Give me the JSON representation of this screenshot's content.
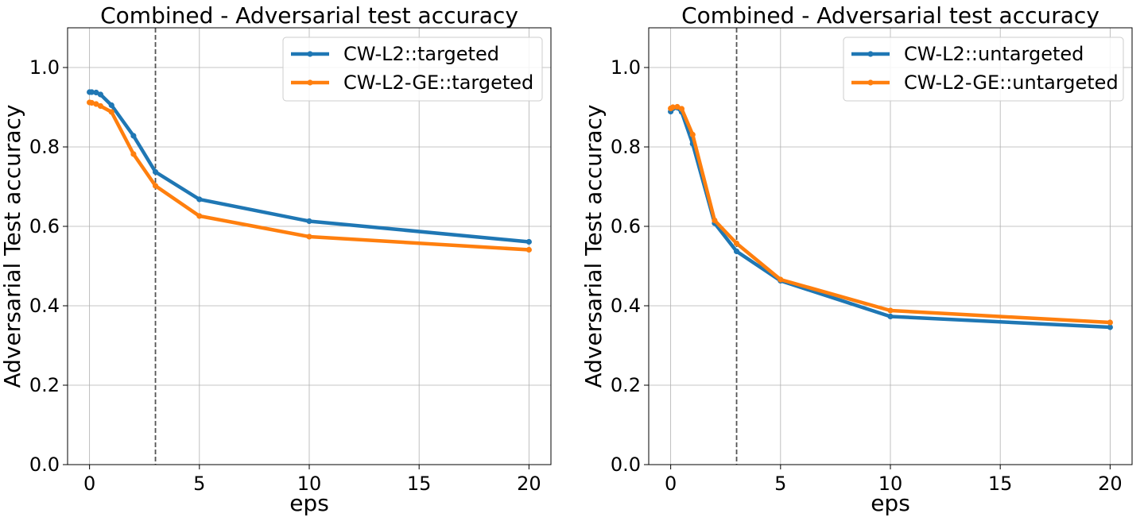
{
  "chart_data": [
    {
      "type": "line",
      "title": "Combined - Adversarial test accuracy",
      "xlabel": "eps",
      "ylabel": "Adversarial Test accuracy",
      "xlim": [
        -1,
        21
      ],
      "ylim": [
        0,
        1.1
      ],
      "xticks": [
        0,
        5,
        10,
        15,
        20
      ],
      "xtick_labels": [
        "0",
        "5",
        "10",
        "15",
        "20"
      ],
      "yticks": [
        0.0,
        0.2,
        0.4,
        0.6,
        0.8,
        1.0
      ],
      "ytick_labels": [
        "0.0",
        "0.2",
        "0.4",
        "0.6",
        "0.8",
        "1.0"
      ],
      "grid": true,
      "legend_position": "top-right",
      "vline_x": 3,
      "series": [
        {
          "name": "CW-L2::targeted",
          "color": "#1f77b4",
          "x": [
            0,
            0.1,
            0.3,
            0.5,
            1,
            2,
            3,
            5,
            10,
            20
          ],
          "y": [
            0.938,
            0.938,
            0.937,
            0.932,
            0.905,
            0.828,
            0.737,
            0.668,
            0.613,
            0.561
          ]
        },
        {
          "name": "CW-L2-GE::targeted",
          "color": "#ff7f0e",
          "x": [
            0,
            0.1,
            0.3,
            0.5,
            1,
            2,
            3,
            5,
            10,
            20
          ],
          "y": [
            0.912,
            0.911,
            0.908,
            0.903,
            0.888,
            0.782,
            0.702,
            0.626,
            0.574,
            0.541
          ]
        }
      ]
    },
    {
      "type": "line",
      "title": "Combined - Adversarial test accuracy",
      "xlabel": "eps",
      "ylabel": "Adversarial Test accuracy",
      "xlim": [
        -1,
        21
      ],
      "ylim": [
        0,
        1.1
      ],
      "xticks": [
        0,
        5,
        10,
        15,
        20
      ],
      "xtick_labels": [
        "0",
        "5",
        "10",
        "15",
        "20"
      ],
      "yticks": [
        0.0,
        0.2,
        0.4,
        0.6,
        0.8,
        1.0
      ],
      "ytick_labels": [
        "0.0",
        "0.2",
        "0.4",
        "0.6",
        "0.8",
        "1.0"
      ],
      "grid": true,
      "legend_position": "top-right",
      "vline_x": 3,
      "series": [
        {
          "name": "CW-L2::untargeted",
          "color": "#1f77b4",
          "x": [
            0,
            0.1,
            0.3,
            0.5,
            1,
            2,
            3,
            5,
            10,
            20
          ],
          "y": [
            0.889,
            0.897,
            0.899,
            0.888,
            0.808,
            0.608,
            0.537,
            0.463,
            0.373,
            0.346
          ]
        },
        {
          "name": "CW-L2-GE::untargeted",
          "color": "#ff7f0e",
          "x": [
            0,
            0.1,
            0.3,
            0.5,
            1,
            2,
            3,
            5,
            10,
            20
          ],
          "y": [
            0.897,
            0.9,
            0.901,
            0.896,
            0.831,
            0.615,
            0.557,
            0.466,
            0.388,
            0.358
          ]
        }
      ]
    }
  ]
}
